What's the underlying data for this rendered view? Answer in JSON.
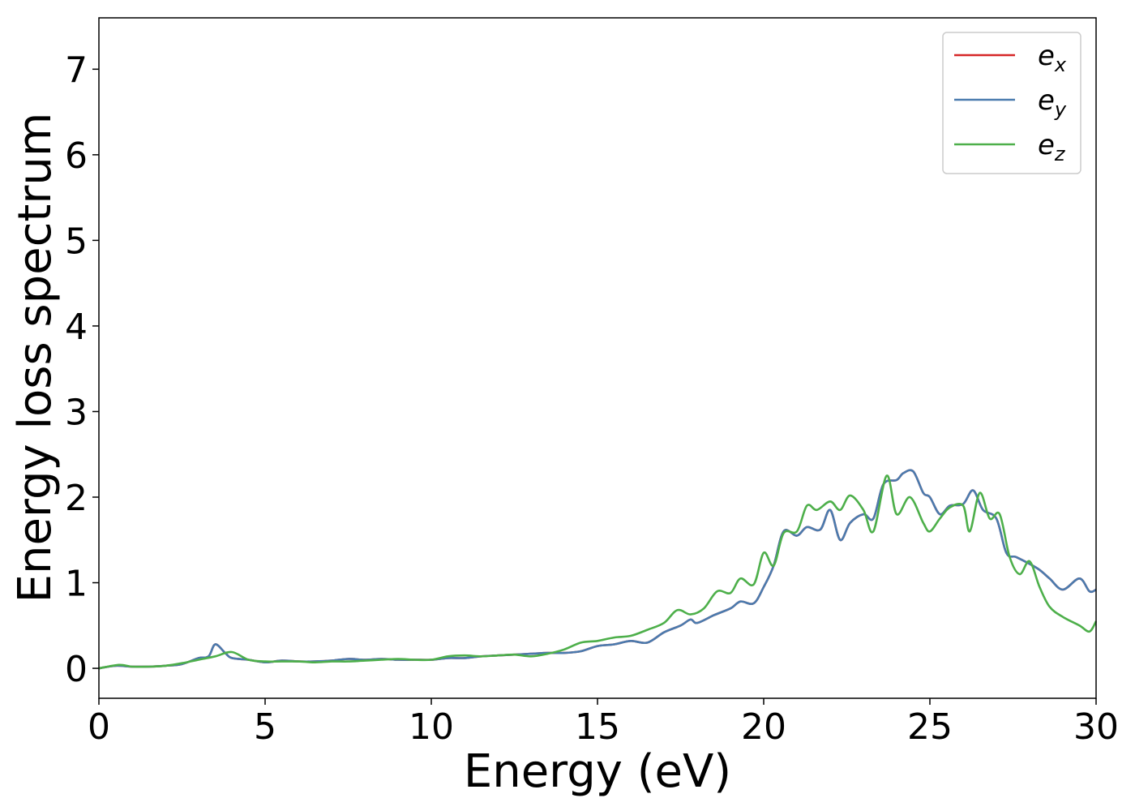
{
  "chart_data": {
    "type": "line",
    "title": "",
    "xlabel": "Energy (eV)",
    "ylabel": "Energy loss spectrum",
    "xlim": [
      0,
      30
    ],
    "ylim": [
      -0.35,
      7.6
    ],
    "xticks": [
      0,
      5,
      10,
      15,
      20,
      25,
      30
    ],
    "yticks": [
      0,
      1,
      2,
      3,
      4,
      5,
      6,
      7
    ],
    "grid": false,
    "legend_position": "top-right",
    "series": [
      {
        "name": "e_x",
        "label_base": "e",
        "label_sub": "x",
        "color": "#d62728",
        "points": [
          [
            0,
            0.0
          ],
          [
            0.5,
            0.03
          ],
          [
            1,
            0.02
          ],
          [
            1.5,
            0.02
          ],
          [
            2,
            0.03
          ],
          [
            2.5,
            0.05
          ],
          [
            3,
            0.12
          ],
          [
            3.3,
            0.14
          ],
          [
            3.5,
            0.28
          ],
          [
            3.8,
            0.18
          ],
          [
            4,
            0.12
          ],
          [
            4.5,
            0.1
          ],
          [
            5,
            0.07
          ],
          [
            5.5,
            0.09
          ],
          [
            6,
            0.08
          ],
          [
            6.5,
            0.08
          ],
          [
            7,
            0.09
          ],
          [
            7.5,
            0.11
          ],
          [
            8,
            0.1
          ],
          [
            8.5,
            0.11
          ],
          [
            9,
            0.1
          ],
          [
            9.5,
            0.1
          ],
          [
            10,
            0.1
          ],
          [
            10.5,
            0.12
          ],
          [
            11,
            0.12
          ],
          [
            11.5,
            0.14
          ],
          [
            12,
            0.15
          ],
          [
            12.5,
            0.16
          ],
          [
            13,
            0.17
          ],
          [
            13.5,
            0.18
          ],
          [
            14,
            0.18
          ],
          [
            14.5,
            0.2
          ],
          [
            15,
            0.26
          ],
          [
            15.5,
            0.28
          ],
          [
            16,
            0.32
          ],
          [
            16.5,
            0.3
          ],
          [
            17,
            0.42
          ],
          [
            17.5,
            0.5
          ],
          [
            17.8,
            0.57
          ],
          [
            18,
            0.53
          ],
          [
            18.5,
            0.62
          ],
          [
            19,
            0.7
          ],
          [
            19.3,
            0.78
          ],
          [
            19.7,
            0.76
          ],
          [
            20,
            0.95
          ],
          [
            20.3,
            1.2
          ],
          [
            20.6,
            1.6
          ],
          [
            21,
            1.55
          ],
          [
            21.3,
            1.65
          ],
          [
            21.7,
            1.62
          ],
          [
            22,
            1.85
          ],
          [
            22.3,
            1.5
          ],
          [
            22.6,
            1.7
          ],
          [
            23,
            1.8
          ],
          [
            23.3,
            1.75
          ],
          [
            23.6,
            2.15
          ],
          [
            24,
            2.2
          ],
          [
            24.2,
            2.28
          ],
          [
            24.5,
            2.3
          ],
          [
            24.8,
            2.05
          ],
          [
            25,
            2.0
          ],
          [
            25.3,
            1.8
          ],
          [
            25.6,
            1.9
          ],
          [
            26,
            1.92
          ],
          [
            26.3,
            2.08
          ],
          [
            26.6,
            1.85
          ],
          [
            27,
            1.75
          ],
          [
            27.3,
            1.35
          ],
          [
            27.6,
            1.3
          ],
          [
            28,
            1.22
          ],
          [
            28.3,
            1.15
          ],
          [
            28.6,
            1.05
          ],
          [
            29,
            0.92
          ],
          [
            29.5,
            1.05
          ],
          [
            29.8,
            0.9
          ],
          [
            30,
            0.92
          ]
        ]
      },
      {
        "name": "e_y",
        "label_base": "e",
        "label_sub": "y",
        "color": "#4a7bae",
        "points": [
          [
            0,
            0.0
          ],
          [
            0.5,
            0.03
          ],
          [
            1,
            0.02
          ],
          [
            1.5,
            0.02
          ],
          [
            2,
            0.03
          ],
          [
            2.5,
            0.05
          ],
          [
            3,
            0.12
          ],
          [
            3.3,
            0.14
          ],
          [
            3.5,
            0.28
          ],
          [
            3.8,
            0.18
          ],
          [
            4,
            0.12
          ],
          [
            4.5,
            0.1
          ],
          [
            5,
            0.07
          ],
          [
            5.5,
            0.09
          ],
          [
            6,
            0.08
          ],
          [
            6.5,
            0.08
          ],
          [
            7,
            0.09
          ],
          [
            7.5,
            0.11
          ],
          [
            8,
            0.1
          ],
          [
            8.5,
            0.11
          ],
          [
            9,
            0.1
          ],
          [
            9.5,
            0.1
          ],
          [
            10,
            0.1
          ],
          [
            10.5,
            0.12
          ],
          [
            11,
            0.12
          ],
          [
            11.5,
            0.14
          ],
          [
            12,
            0.15
          ],
          [
            12.5,
            0.16
          ],
          [
            13,
            0.17
          ],
          [
            13.5,
            0.18
          ],
          [
            14,
            0.18
          ],
          [
            14.5,
            0.2
          ],
          [
            15,
            0.26
          ],
          [
            15.5,
            0.28
          ],
          [
            16,
            0.32
          ],
          [
            16.5,
            0.3
          ],
          [
            17,
            0.42
          ],
          [
            17.5,
            0.5
          ],
          [
            17.8,
            0.57
          ],
          [
            18,
            0.53
          ],
          [
            18.5,
            0.62
          ],
          [
            19,
            0.7
          ],
          [
            19.3,
            0.78
          ],
          [
            19.7,
            0.76
          ],
          [
            20,
            0.95
          ],
          [
            20.3,
            1.2
          ],
          [
            20.6,
            1.6
          ],
          [
            21,
            1.55
          ],
          [
            21.3,
            1.65
          ],
          [
            21.7,
            1.62
          ],
          [
            22,
            1.85
          ],
          [
            22.3,
            1.5
          ],
          [
            22.6,
            1.7
          ],
          [
            23,
            1.8
          ],
          [
            23.3,
            1.75
          ],
          [
            23.6,
            2.15
          ],
          [
            24,
            2.2
          ],
          [
            24.2,
            2.28
          ],
          [
            24.5,
            2.3
          ],
          [
            24.8,
            2.05
          ],
          [
            25,
            2.0
          ],
          [
            25.3,
            1.8
          ],
          [
            25.6,
            1.9
          ],
          [
            26,
            1.92
          ],
          [
            26.3,
            2.08
          ],
          [
            26.6,
            1.85
          ],
          [
            27,
            1.75
          ],
          [
            27.3,
            1.35
          ],
          [
            27.6,
            1.3
          ],
          [
            28,
            1.22
          ],
          [
            28.3,
            1.15
          ],
          [
            28.6,
            1.05
          ],
          [
            29,
            0.92
          ],
          [
            29.5,
            1.05
          ],
          [
            29.8,
            0.9
          ],
          [
            30,
            0.92
          ]
        ]
      },
      {
        "name": "e_z",
        "label_base": "e",
        "label_sub": "z",
        "color": "#4daf4a",
        "points": [
          [
            0,
            0.0
          ],
          [
            0.6,
            0.04
          ],
          [
            1,
            0.02
          ],
          [
            1.5,
            0.02
          ],
          [
            2,
            0.03
          ],
          [
            2.5,
            0.06
          ],
          [
            3,
            0.1
          ],
          [
            3.5,
            0.14
          ],
          [
            4,
            0.19
          ],
          [
            4.5,
            0.1
          ],
          [
            5,
            0.08
          ],
          [
            5.5,
            0.08
          ],
          [
            6,
            0.08
          ],
          [
            6.5,
            0.07
          ],
          [
            7,
            0.08
          ],
          [
            7.5,
            0.08
          ],
          [
            8,
            0.09
          ],
          [
            8.5,
            0.1
          ],
          [
            9,
            0.11
          ],
          [
            9.5,
            0.1
          ],
          [
            10,
            0.1
          ],
          [
            10.5,
            0.14
          ],
          [
            11,
            0.15
          ],
          [
            11.5,
            0.14
          ],
          [
            12,
            0.15
          ],
          [
            12.5,
            0.16
          ],
          [
            13,
            0.14
          ],
          [
            13.5,
            0.17
          ],
          [
            14,
            0.22
          ],
          [
            14.5,
            0.3
          ],
          [
            15,
            0.32
          ],
          [
            15.5,
            0.36
          ],
          [
            16,
            0.38
          ],
          [
            16.5,
            0.45
          ],
          [
            17,
            0.53
          ],
          [
            17.4,
            0.68
          ],
          [
            17.8,
            0.63
          ],
          [
            18.2,
            0.7
          ],
          [
            18.6,
            0.9
          ],
          [
            19,
            0.88
          ],
          [
            19.3,
            1.05
          ],
          [
            19.7,
            0.98
          ],
          [
            20,
            1.35
          ],
          [
            20.3,
            1.2
          ],
          [
            20.6,
            1.58
          ],
          [
            21,
            1.6
          ],
          [
            21.3,
            1.9
          ],
          [
            21.6,
            1.85
          ],
          [
            22,
            1.95
          ],
          [
            22.3,
            1.85
          ],
          [
            22.6,
            2.02
          ],
          [
            23,
            1.85
          ],
          [
            23.3,
            1.6
          ],
          [
            23.7,
            2.25
          ],
          [
            24,
            1.8
          ],
          [
            24.4,
            2.0
          ],
          [
            24.8,
            1.7
          ],
          [
            25,
            1.6
          ],
          [
            25.3,
            1.75
          ],
          [
            25.6,
            1.88
          ],
          [
            26,
            1.9
          ],
          [
            26.2,
            1.6
          ],
          [
            26.5,
            2.05
          ],
          [
            26.8,
            1.75
          ],
          [
            27.1,
            1.8
          ],
          [
            27.4,
            1.3
          ],
          [
            27.7,
            1.1
          ],
          [
            28,
            1.25
          ],
          [
            28.3,
            0.95
          ],
          [
            28.6,
            0.72
          ],
          [
            29,
            0.6
          ],
          [
            29.5,
            0.5
          ],
          [
            29.8,
            0.43
          ],
          [
            30,
            0.55
          ]
        ]
      }
    ]
  }
}
